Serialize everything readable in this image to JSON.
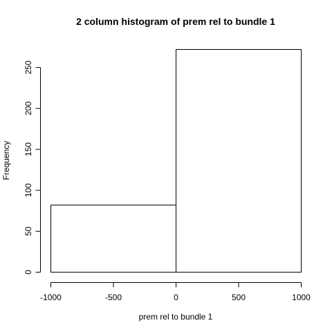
{
  "chart_data": {
    "type": "bar",
    "title": "2 column histogram of prem rel to bundle 1",
    "xlabel": "prem rel to bundle 1",
    "ylabel": "Frequency",
    "bins": [
      {
        "start": -1000,
        "end": 0,
        "count": 82
      },
      {
        "start": 0,
        "end": 1000,
        "count": 272
      }
    ],
    "x_ticks": [
      -1000,
      -500,
      0,
      500,
      1000
    ],
    "x_tick_labels": [
      "-1000",
      "-500",
      "0",
      "500",
      "1000"
    ],
    "y_ticks": [
      0,
      50,
      100,
      150,
      200,
      250
    ],
    "y_tick_labels": [
      "0",
      "50",
      "100",
      "150",
      "200",
      "250"
    ],
    "xlim": [
      -1000,
      1000
    ],
    "ylim": [
      0,
      272
    ],
    "grid": false,
    "legend": "none",
    "colors": {
      "bar_fill": "#ffffff",
      "bar_stroke": "#000000",
      "axis": "#000000",
      "background": "#ffffff"
    }
  }
}
